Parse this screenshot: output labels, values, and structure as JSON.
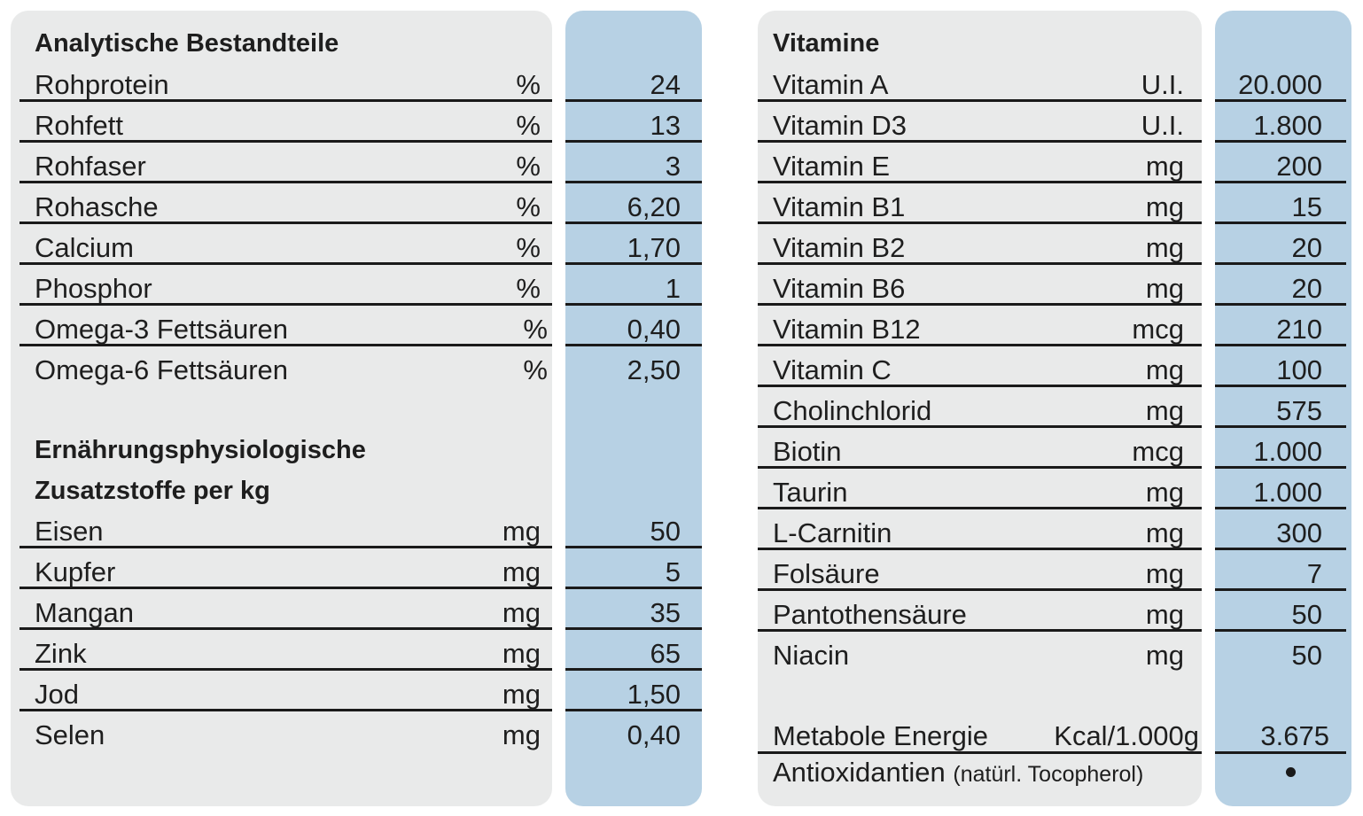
{
  "left": {
    "heading": "Analytische Bestandteile",
    "rows": [
      {
        "label": "Rohprotein",
        "unit": "%",
        "value": "24"
      },
      {
        "label": "Rohfett",
        "unit": "%",
        "value": "13"
      },
      {
        "label": "Rohfaser",
        "unit": "%",
        "value": "3"
      },
      {
        "label": "Rohasche",
        "unit": "%",
        "value": "6,20"
      },
      {
        "label": "Calcium",
        "unit": "%",
        "value": "1,70"
      },
      {
        "label": "Phosphor",
        "unit": "%",
        "value": "1"
      },
      {
        "label": "Omega-3 Fettsäuren",
        "unit": "%",
        "value": "0,40"
      },
      {
        "label": "Omega-6 Fettsäuren",
        "unit": "%",
        "value": "2,50"
      }
    ],
    "heading2_line1": "Ernährungsphysiologische",
    "heading2_line2": "Zusatzstoffe per kg",
    "rows2": [
      {
        "label": "Eisen",
        "unit": "mg",
        "value": "50"
      },
      {
        "label": "Kupfer",
        "unit": "mg",
        "value": "5"
      },
      {
        "label": "Mangan",
        "unit": "mg",
        "value": "35"
      },
      {
        "label": "Zink",
        "unit": "mg",
        "value": "65"
      },
      {
        "label": "Jod",
        "unit": "mg",
        "value": "1,50"
      },
      {
        "label": "Selen",
        "unit": "mg",
        "value": "0,40"
      }
    ]
  },
  "right": {
    "heading": "Vitamine",
    "rows": [
      {
        "label": "Vitamin A",
        "unit": "U.I.",
        "value": "20.000"
      },
      {
        "label": "Vitamin D3",
        "unit": "U.I.",
        "value": "1.800"
      },
      {
        "label": "Vitamin E",
        "unit": "mg",
        "value": "200"
      },
      {
        "label": "Vitamin B1",
        "unit": "mg",
        "value": "15"
      },
      {
        "label": "Vitamin B2",
        "unit": "mg",
        "value": "20"
      },
      {
        "label": "Vitamin B6",
        "unit": "mg",
        "value": "20"
      },
      {
        "label": "Vitamin B12",
        "unit": "mcg",
        "value": "210"
      },
      {
        "label": "Vitamin C",
        "unit": "mg",
        "value": "100"
      },
      {
        "label": "Cholinchlorid",
        "unit": "mg",
        "value": "575"
      },
      {
        "label": "Biotin",
        "unit": "mcg",
        "value": "1.000"
      },
      {
        "label": "Taurin",
        "unit": "mg",
        "value": "1.000"
      },
      {
        "label": "L-Carnitin",
        "unit": "mg",
        "value": "300"
      },
      {
        "label": "Folsäure",
        "unit": "mg",
        "value": "7"
      },
      {
        "label": "Pantothensäure",
        "unit": "mg",
        "value": "50"
      },
      {
        "label": "Niacin",
        "unit": "mg",
        "value": "50"
      }
    ],
    "energy": {
      "label": "Metabole Energie",
      "unit": "Kcal/1.000g",
      "value": "3.675"
    },
    "antioxidants": {
      "label": "Antioxidantien",
      "note": "(natürl. Tocopherol)",
      "value_icon": "bullet-dot-icon"
    }
  },
  "colors": {
    "panel_grey": "#e9eaea",
    "panel_blue": "#b7d1e4",
    "rule": "#1a1a1a",
    "text": "#1e1e1e"
  }
}
